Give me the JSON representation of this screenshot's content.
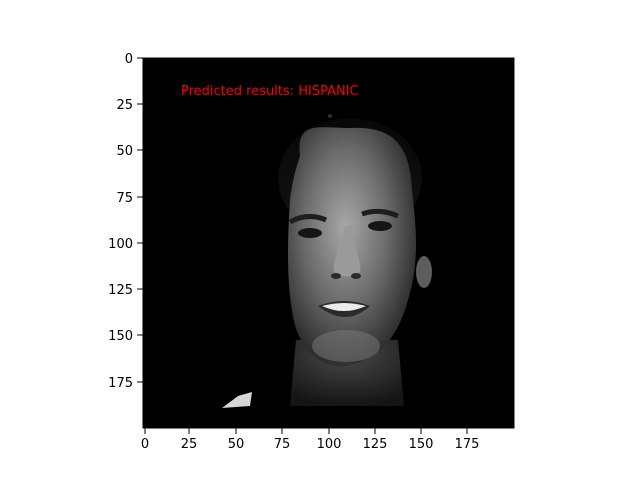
{
  "figure": {
    "annotation": {
      "text": "Predicted results: HISPANIC",
      "color": "#ff0000",
      "x": 20,
      "y": 19
    },
    "image": {
      "subject": "grayscale face photograph",
      "width": 200,
      "height": 200
    }
  },
  "chart_data": {
    "type": "image",
    "annotation": "Predicted results: HISPANIC",
    "xlim": [
      0,
      200
    ],
    "ylim": [
      200,
      0
    ],
    "x_ticks": [
      "0",
      "25",
      "50",
      "75",
      "100",
      "125",
      "150",
      "175"
    ],
    "y_ticks": [
      "0",
      "25",
      "50",
      "75",
      "100",
      "125",
      "150",
      "175"
    ]
  }
}
